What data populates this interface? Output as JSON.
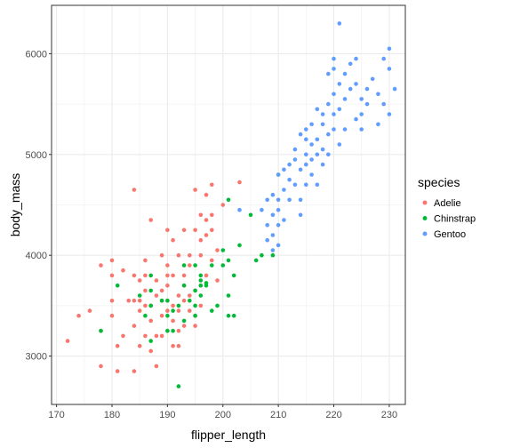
{
  "chart_data": {
    "type": "scatter",
    "xlabel": "flipper_length",
    "ylabel": "body_mass",
    "xlim": [
      169.1,
      232.9
    ],
    "ylim": [
      2520,
      6480
    ],
    "xticks": [
      170,
      180,
      190,
      200,
      210,
      220,
      230
    ],
    "yticks": [
      3000,
      4000,
      5000,
      6000
    ],
    "grid": true,
    "legend": {
      "title": "species",
      "placement": "right"
    },
    "series": [
      {
        "name": "Adelie",
        "color": "#F8766D",
        "points": [
          [
            172,
            3150
          ],
          [
            174,
            3400
          ],
          [
            176,
            3450
          ],
          [
            178,
            3900
          ],
          [
            178,
            2900
          ],
          [
            178,
            3250
          ],
          [
            180,
            3950
          ],
          [
            180,
            3800
          ],
          [
            180,
            3550
          ],
          [
            180,
            3400
          ],
          [
            181,
            3100
          ],
          [
            181,
            2850
          ],
          [
            182,
            3200
          ],
          [
            182,
            3850
          ],
          [
            183,
            3550
          ],
          [
            184,
            3550
          ],
          [
            184,
            3300
          ],
          [
            184,
            3800
          ],
          [
            184,
            4650
          ],
          [
            184,
            2850
          ],
          [
            185,
            3750
          ],
          [
            185,
            3550
          ],
          [
            185,
            3450
          ],
          [
            185,
            3100
          ],
          [
            186,
            3800
          ],
          [
            186,
            3500
          ],
          [
            186,
            3200
          ],
          [
            186,
            3950
          ],
          [
            186,
            3650
          ],
          [
            187,
            3350
          ],
          [
            187,
            3500
          ],
          [
            187,
            3050
          ],
          [
            187,
            4350
          ],
          [
            188,
            3600
          ],
          [
            188,
            3200
          ],
          [
            188,
            2900
          ],
          [
            188,
            3750
          ],
          [
            189,
            3650
          ],
          [
            189,
            3400
          ],
          [
            189,
            3200
          ],
          [
            189,
            4000
          ],
          [
            189,
            3550
          ],
          [
            190,
            3550
          ],
          [
            190,
            3450
          ],
          [
            190,
            3800
          ],
          [
            190,
            3900
          ],
          [
            190,
            3250
          ],
          [
            190,
            4250
          ],
          [
            190,
            3700
          ],
          [
            191,
            3500
          ],
          [
            191,
            3800
          ],
          [
            191,
            4150
          ],
          [
            191,
            3350
          ],
          [
            191,
            3100
          ],
          [
            192,
            3600
          ],
          [
            192,
            3250
          ],
          [
            192,
            4000
          ],
          [
            192,
            3450
          ],
          [
            192,
            3100
          ],
          [
            193,
            3700
          ],
          [
            193,
            3300
          ],
          [
            193,
            4250
          ],
          [
            193,
            3550
          ],
          [
            193,
            3800
          ],
          [
            194,
            3900
          ],
          [
            194,
            3450
          ],
          [
            194,
            3600
          ],
          [
            194,
            4000
          ],
          [
            195,
            3300
          ],
          [
            195,
            4250
          ],
          [
            195,
            3650
          ],
          [
            195,
            3400
          ],
          [
            195,
            4650
          ],
          [
            196,
            4150
          ],
          [
            196,
            3700
          ],
          [
            196,
            4000
          ],
          [
            196,
            4400
          ],
          [
            196,
            3500
          ],
          [
            197,
            4200
          ],
          [
            197,
            3800
          ],
          [
            197,
            4600
          ],
          [
            197,
            4350
          ],
          [
            198,
            3950
          ],
          [
            198,
            4250
          ],
          [
            198,
            4700
          ],
          [
            198,
            4400
          ],
          [
            199,
            3750
          ],
          [
            199,
            4050
          ],
          [
            200,
            4500
          ],
          [
            203,
            4725
          ]
        ]
      },
      {
        "name": "Chinstrap",
        "color": "#00BA38",
        "points": [
          [
            178,
            3250
          ],
          [
            181,
            3700
          ],
          [
            185,
            3600
          ],
          [
            186,
            3400
          ],
          [
            187,
            3500
          ],
          [
            187,
            3800
          ],
          [
            187,
            3650
          ],
          [
            187,
            3150
          ],
          [
            189,
            3550
          ],
          [
            190,
            3550
          ],
          [
            190,
            3400
          ],
          [
            190,
            3250
          ],
          [
            191,
            3450
          ],
          [
            191,
            3250
          ],
          [
            192,
            3500
          ],
          [
            192,
            2700
          ],
          [
            193,
            3700
          ],
          [
            193,
            3900
          ],
          [
            193,
            3350
          ],
          [
            194,
            3550
          ],
          [
            195,
            3650
          ],
          [
            195,
            3400
          ],
          [
            195,
            3900
          ],
          [
            195,
            3500
          ],
          [
            196,
            3750
          ],
          [
            196,
            3600
          ],
          [
            196,
            3800
          ],
          [
            196,
            3700
          ],
          [
            197,
            3725
          ],
          [
            197,
            3700
          ],
          [
            198,
            3900
          ],
          [
            198,
            3450
          ],
          [
            199,
            3500
          ],
          [
            200,
            3900
          ],
          [
            200,
            4050
          ],
          [
            201,
            3950
          ],
          [
            201,
            4550
          ],
          [
            201,
            3600
          ],
          [
            201,
            3400
          ],
          [
            202,
            3800
          ],
          [
            202,
            3400
          ],
          [
            203,
            4100
          ],
          [
            205,
            4400
          ],
          [
            206,
            3950
          ],
          [
            207,
            4000
          ],
          [
            209,
            4000
          ],
          [
            210,
            4800
          ]
        ]
      },
      {
        "name": "Gentoo",
        "color": "#619CFF",
        "points": [
          [
            203,
            4450
          ],
          [
            207,
            4450
          ],
          [
            208,
            4550
          ],
          [
            208,
            4150
          ],
          [
            208,
            4300
          ],
          [
            209,
            4400
          ],
          [
            209,
            4600
          ],
          [
            209,
            4050
          ],
          [
            209,
            4200
          ],
          [
            210,
            4800
          ],
          [
            210,
            4450
          ],
          [
            210,
            4550
          ],
          [
            210,
            4100
          ],
          [
            210,
            4300
          ],
          [
            211,
            4850
          ],
          [
            211,
            4650
          ],
          [
            211,
            4350
          ],
          [
            212,
            4900
          ],
          [
            212,
            4750
          ],
          [
            212,
            4550
          ],
          [
            213,
            5050
          ],
          [
            213,
            4700
          ],
          [
            213,
            4950
          ],
          [
            214,
            5200
          ],
          [
            214,
            4850
          ],
          [
            214,
            4550
          ],
          [
            214,
            4400
          ],
          [
            215,
            5150
          ],
          [
            215,
            5000
          ],
          [
            215,
            4700
          ],
          [
            215,
            4900
          ],
          [
            215,
            5250
          ],
          [
            216,
            4950
          ],
          [
            216,
            5100
          ],
          [
            216,
            4800
          ],
          [
            216,
            5300
          ],
          [
            217,
            4700
          ],
          [
            217,
            5000
          ],
          [
            217,
            5450
          ],
          [
            217,
            5150
          ],
          [
            218,
            5300
          ],
          [
            218,
            5400
          ],
          [
            218,
            4900
          ],
          [
            218,
            5050
          ],
          [
            219,
            5500
          ],
          [
            219,
            5200
          ],
          [
            219,
            5800
          ],
          [
            219,
            5000
          ],
          [
            220,
            5400
          ],
          [
            220,
            5250
          ],
          [
            220,
            5600
          ],
          [
            220,
            5850
          ],
          [
            220,
            5950
          ],
          [
            221,
            6300
          ],
          [
            221,
            5700
          ],
          [
            221,
            5100
          ],
          [
            221,
            5450
          ],
          [
            222,
            5550
          ],
          [
            222,
            5800
          ],
          [
            222,
            5250
          ],
          [
            223,
            5650
          ],
          [
            223,
            5900
          ],
          [
            224,
            5350
          ],
          [
            224,
            5700
          ],
          [
            224,
            5950
          ],
          [
            225,
            5400
          ],
          [
            225,
            5550
          ],
          [
            225,
            5250
          ],
          [
            226,
            5500
          ],
          [
            226,
            5650
          ],
          [
            227,
            5750
          ],
          [
            228,
            5300
          ],
          [
            228,
            5600
          ],
          [
            229,
            5500
          ],
          [
            229,
            5950
          ],
          [
            230,
            5850
          ],
          [
            230,
            5400
          ],
          [
            230,
            6050
          ],
          [
            231,
            5650
          ]
        ]
      }
    ]
  }
}
